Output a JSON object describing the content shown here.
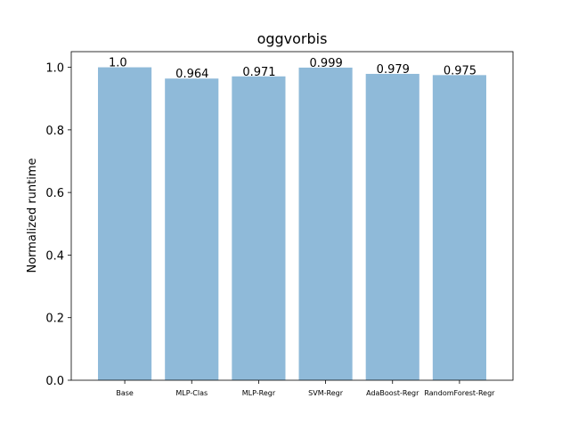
{
  "chart_data": {
    "type": "bar",
    "title": "oggvorbis",
    "xlabel": "",
    "ylabel": "Normalized runtime",
    "categories": [
      "Base",
      "MLP-Clas",
      "MLP-Regr",
      "SVM-Regr",
      "AdaBoost-Regr",
      "RandomForest-Regr"
    ],
    "values": [
      1.0,
      0.964,
      0.971,
      0.999,
      0.979,
      0.975
    ],
    "data_labels": [
      "1.0",
      "0.964",
      "0.971",
      "0.999",
      "0.979",
      "0.975"
    ],
    "ylim": [
      0,
      1.05
    ],
    "yticks": [
      "0.0",
      "0.2",
      "0.4",
      "0.6",
      "0.8",
      "1.0"
    ],
    "ytick_values": [
      0.0,
      0.2,
      0.4,
      0.6,
      0.8,
      1.0
    ],
    "bar_color": "#8fbad9",
    "grid": false,
    "legend": "none"
  }
}
